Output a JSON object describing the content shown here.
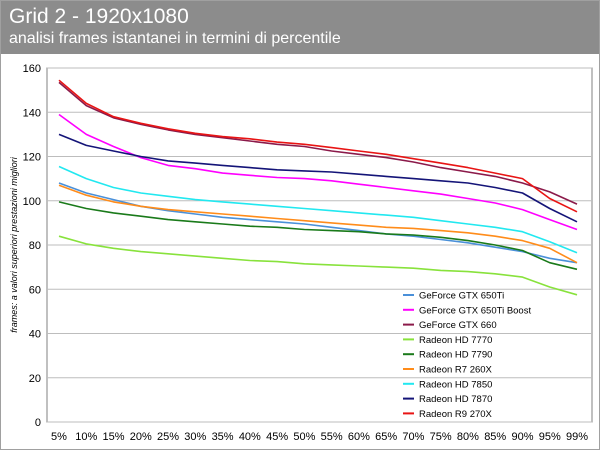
{
  "header": {
    "title": "Grid 2 - 1920x1080",
    "subtitle": "analisi frames istantanei in termini di percentile"
  },
  "chart_data": {
    "type": "line",
    "title": "Grid 2 - 1920x1080",
    "subtitle": "analisi frames istantanei in termini di percentile",
    "xlabel": "",
    "ylabel": "frames: a valori superiori prestazioni migliori",
    "categories": [
      "5%",
      "10%",
      "15%",
      "20%",
      "25%",
      "30%",
      "35%",
      "40%",
      "45%",
      "50%",
      "55%",
      "60%",
      "65%",
      "70%",
      "75%",
      "80%",
      "85%",
      "90%",
      "95%",
      "99%"
    ],
    "ylim": [
      0,
      160
    ],
    "yticks": [
      0,
      20,
      40,
      60,
      80,
      100,
      120,
      140,
      160
    ],
    "grid": true,
    "legend_position": "bottom-right",
    "series": [
      {
        "name": "GeForce GTX 650Ti",
        "color": "#4a90d9",
        "values": [
          108,
          103.5,
          100.5,
          97.5,
          95.5,
          94,
          92.5,
          91.5,
          90.5,
          89.5,
          88,
          86.5,
          85,
          84,
          82.5,
          81,
          79,
          77,
          74,
          72
        ]
      },
      {
        "name": "GeForce GTX 650Ti Boost",
        "color": "#ff00ff",
        "values": [
          139,
          130,
          124.5,
          119.5,
          116,
          114.5,
          112.5,
          111.5,
          110.5,
          110,
          109,
          107.5,
          106,
          104.5,
          103,
          101,
          99,
          96,
          91.5,
          87
        ]
      },
      {
        "name": "GeForce GTX 660",
        "color": "#8b1a4a",
        "values": [
          153.5,
          143,
          137.5,
          134.5,
          132,
          130,
          128.5,
          127,
          125.5,
          124.5,
          122.5,
          121,
          119.5,
          117.5,
          115,
          113,
          111,
          108,
          104,
          98.5
        ]
      },
      {
        "name": "Radeon HD 7770",
        "color": "#88e23c",
        "values": [
          84,
          80.5,
          78.5,
          77,
          76,
          75,
          74,
          73,
          72.5,
          71.5,
          71,
          70.5,
          70,
          69.5,
          68.5,
          68,
          67,
          65.5,
          61,
          57.5
        ]
      },
      {
        "name": "Radeon HD 7790",
        "color": "#1a7a1a",
        "values": [
          99.5,
          96.5,
          94.5,
          93,
          91.5,
          90.5,
          89.5,
          88.5,
          88,
          87,
          86.5,
          86,
          85,
          84.5,
          83.5,
          82,
          80,
          77.5,
          72,
          69
        ]
      },
      {
        "name": "Radeon R7 260X",
        "color": "#ff8c1a",
        "values": [
          107,
          102.5,
          99.5,
          97.5,
          96,
          95,
          94,
          93,
          92,
          91,
          90,
          89,
          88,
          87.5,
          86.5,
          85.5,
          84,
          82,
          78.5,
          72
        ]
      },
      {
        "name": "Radeon HD 7850",
        "color": "#22e8f0",
        "values": [
          115.5,
          110,
          106,
          103.5,
          102,
          100.5,
          99.5,
          98.5,
          97.5,
          96.5,
          95.5,
          94.5,
          93.5,
          92.5,
          91,
          89.5,
          88,
          86,
          81.5,
          76.5
        ]
      },
      {
        "name": "Radeon HD 7870",
        "color": "#141478",
        "values": [
          130,
          125,
          122.5,
          120,
          118,
          117,
          116,
          115,
          114,
          113.5,
          113,
          112,
          111,
          110,
          109,
          108,
          106,
          103.5,
          96.5,
          90.5
        ]
      },
      {
        "name": "Radeon R9 270X",
        "color": "#e81414",
        "values": [
          154.5,
          144,
          138,
          135,
          132.5,
          130.5,
          129,
          128,
          126.5,
          125.5,
          124,
          122.5,
          121,
          119,
          117,
          115,
          112.5,
          110,
          101,
          95
        ]
      }
    ]
  }
}
